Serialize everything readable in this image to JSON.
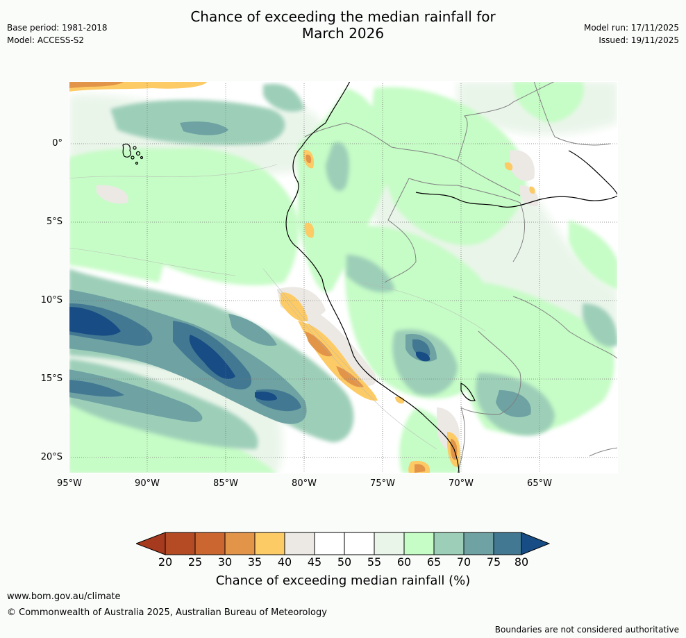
{
  "title_line1": "Chance of exceeding the median rainfall for",
  "title_line2": "March 2026",
  "base_period": "Base period: 1981-2018",
  "model": "Model: ACCESS-S2",
  "model_run": "Model run: 17/11/2025",
  "issued": "Issued: 19/11/2025",
  "lat_labels": [
    "0°",
    "5°S",
    "10°S",
    "15°S",
    "20°S"
  ],
  "lon_labels": [
    "95°W",
    "90°W",
    "85°W",
    "80°W",
    "75°W",
    "70°W",
    "65°W"
  ],
  "colorbar": {
    "title": "Chance of exceeding median rainfall (%)",
    "ticks": [
      "20",
      "25",
      "30",
      "35",
      "40",
      "45",
      "50",
      "55",
      "60",
      "65",
      "70",
      "75",
      "80"
    ],
    "colors": [
      "#a63a1e",
      "#b44b25",
      "#cc6630",
      "#e29449",
      "#fdcb66",
      "#ece9e5",
      "#ffffff",
      "#ffffff",
      "#eaf5ea",
      "#c6fcc6",
      "#9dcfb8",
      "#6ea2a3",
      "#427892",
      "#174c84"
    ]
  },
  "website": "www.bom.gov.au/climate",
  "copyright": "© Commonwealth of Australia 2025, Australian Bureau of Meteorology",
  "disclaimer": "Boundaries are not considered authoritative"
}
